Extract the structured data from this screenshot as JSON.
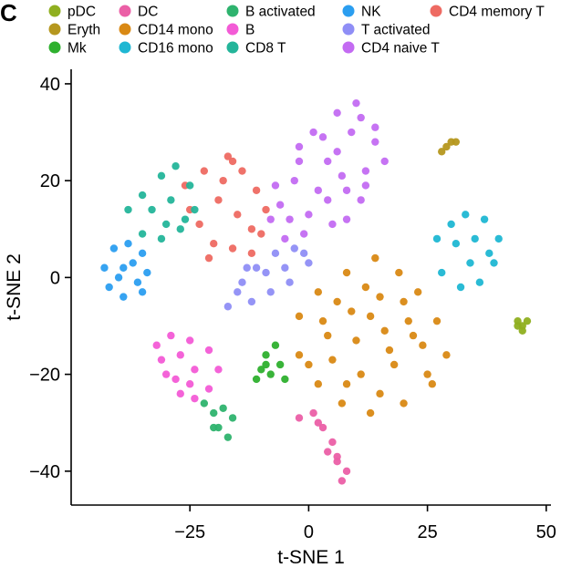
{
  "panel_label": "C",
  "chart_data": {
    "type": "scatter",
    "title": "",
    "xlabel": "t-SNE 1",
    "ylabel": "t-SNE 2",
    "xlim": [
      -50,
      51
    ],
    "ylim": [
      -47,
      43
    ],
    "xticks": [
      -25,
      0,
      25,
      50
    ],
    "yticks": [
      -40,
      -20,
      0,
      20,
      40
    ],
    "xtick_labels": [
      "−25",
      "0",
      "25",
      "50"
    ],
    "ytick_labels": [
      "−40",
      "−20",
      "0",
      "20",
      "40"
    ],
    "grid": false,
    "legend_position": "top",
    "legend": [
      {
        "name": "pDC",
        "color": "#8FAF1F"
      },
      {
        "name": "Eryth",
        "color": "#B5971E"
      },
      {
        "name": "Mk",
        "color": "#2EB02E"
      },
      {
        "name": "DC",
        "color": "#EB5FA6"
      },
      {
        "name": "CD14 mono",
        "color": "#D98914"
      },
      {
        "name": "CD16 mono",
        "color": "#1FB7D3"
      },
      {
        "name": "B activated",
        "color": "#2EB36E"
      },
      {
        "name": "B",
        "color": "#F35BD6"
      },
      {
        "name": "CD8 T",
        "color": "#24B59A"
      },
      {
        "name": "NK",
        "color": "#2B9EF0"
      },
      {
        "name": "T activated",
        "color": "#8F8EF6"
      },
      {
        "name": "CD4 naive T",
        "color": "#C36BF2"
      },
      {
        "name": "CD4 memory T",
        "color": "#EE6A62"
      }
    ],
    "series": [
      {
        "name": "CD4 naive T",
        "color": "#C36BF2",
        "points": [
          [
            -7,
            19
          ],
          [
            -3,
            20
          ],
          [
            2,
            18
          ],
          [
            6,
            26
          ],
          [
            9,
            30
          ],
          [
            11,
            33
          ],
          [
            14,
            28
          ],
          [
            12,
            22
          ],
          [
            8,
            18
          ],
          [
            4,
            16
          ],
          [
            0,
            13
          ],
          [
            -4,
            12
          ],
          [
            -6,
            15
          ],
          [
            -2,
            24
          ],
          [
            3,
            29
          ],
          [
            6,
            34
          ],
          [
            10,
            36
          ],
          [
            14,
            31
          ],
          [
            16,
            24
          ],
          [
            11,
            16
          ],
          [
            5,
            11
          ],
          [
            -1,
            9
          ],
          [
            -5,
            8
          ],
          [
            -8,
            12
          ],
          [
            -2,
            27
          ],
          [
            4,
            24
          ],
          [
            8,
            12
          ],
          [
            12,
            19
          ],
          [
            1,
            30
          ],
          [
            7,
            21
          ]
        ]
      },
      {
        "name": "CD4 memory T",
        "color": "#EE6A62",
        "points": [
          [
            -26,
            19
          ],
          [
            -22,
            22
          ],
          [
            -17,
            25
          ],
          [
            -14,
            22
          ],
          [
            -11,
            18
          ],
          [
            -9,
            14
          ],
          [
            -12,
            10
          ],
          [
            -16,
            6
          ],
          [
            -20,
            7
          ],
          [
            -23,
            11
          ],
          [
            -25,
            14
          ],
          [
            -19,
            16
          ],
          [
            -15,
            13
          ],
          [
            -12,
            5
          ],
          [
            -18,
            20
          ],
          [
            -21,
            4
          ],
          [
            -10,
            9
          ],
          [
            -16,
            24
          ]
        ]
      },
      {
        "name": "CD8 T",
        "color": "#24B59A",
        "points": [
          [
            -38,
            14
          ],
          [
            -35,
            17
          ],
          [
            -31,
            21
          ],
          [
            -28,
            23
          ],
          [
            -25,
            19
          ],
          [
            -24,
            14
          ],
          [
            -27,
            10
          ],
          [
            -31,
            8
          ],
          [
            -35,
            9
          ],
          [
            -33,
            14
          ],
          [
            -29,
            16
          ],
          [
            -26,
            12
          ],
          [
            -30,
            11
          ]
        ]
      },
      {
        "name": "NK",
        "color": "#2B9EF0",
        "points": [
          [
            -43,
            2
          ],
          [
            -41,
            6
          ],
          [
            -38,
            7
          ],
          [
            -35,
            5
          ],
          [
            -34,
            1
          ],
          [
            -35,
            -3
          ],
          [
            -39,
            -4
          ],
          [
            -42,
            -2
          ],
          [
            -39,
            2
          ],
          [
            -37,
            3
          ],
          [
            -36,
            -1
          ],
          [
            -40,
            0
          ]
        ]
      },
      {
        "name": "T activated",
        "color": "#8F8EF6",
        "points": [
          [
            -17,
            -6
          ],
          [
            -14,
            -1
          ],
          [
            -11,
            2
          ],
          [
            -7,
            5
          ],
          [
            -3,
            6
          ],
          [
            0,
            3
          ],
          [
            -4,
            -1
          ],
          [
            -8,
            -3
          ],
          [
            -12,
            -5
          ],
          [
            -15,
            -3
          ],
          [
            -9,
            1
          ],
          [
            -5,
            2
          ],
          [
            -1,
            5
          ],
          [
            -13,
            2
          ]
        ]
      },
      {
        "name": "CD14 mono",
        "color": "#D98914",
        "points": [
          [
            -2,
            -8
          ],
          [
            2,
            -3
          ],
          [
            8,
            1
          ],
          [
            14,
            4
          ],
          [
            19,
            1
          ],
          [
            23,
            -3
          ],
          [
            27,
            -9
          ],
          [
            29,
            -16
          ],
          [
            26,
            -22
          ],
          [
            20,
            -26
          ],
          [
            13,
            -28
          ],
          [
            7,
            -26
          ],
          [
            2,
            -22
          ],
          [
            -2,
            -16
          ],
          [
            4,
            -12
          ],
          [
            9,
            -7
          ],
          [
            15,
            -4
          ],
          [
            21,
            -9
          ],
          [
            24,
            -14
          ],
          [
            18,
            -18
          ],
          [
            11,
            -20
          ],
          [
            5,
            -17
          ],
          [
            10,
            -13
          ],
          [
            16,
            -11
          ],
          [
            6,
            -5
          ],
          [
            12,
            -2
          ],
          [
            20,
            -5
          ],
          [
            25,
            -20
          ],
          [
            15,
            -24
          ],
          [
            8,
            -22
          ],
          [
            0,
            -18
          ],
          [
            3,
            -9
          ],
          [
            22,
            -12
          ],
          [
            17,
            -15
          ],
          [
            13,
            -8
          ]
        ]
      },
      {
        "name": "CD16 mono",
        "color": "#1FB7D3",
        "points": [
          [
            27,
            8
          ],
          [
            30,
            11
          ],
          [
            33,
            13
          ],
          [
            37,
            12
          ],
          [
            40,
            8
          ],
          [
            39,
            3
          ],
          [
            36,
            -1
          ],
          [
            32,
            -2
          ],
          [
            28,
            1
          ],
          [
            31,
            7
          ],
          [
            35,
            8
          ],
          [
            34,
            3
          ],
          [
            38,
            5
          ]
        ]
      },
      {
        "name": "DC",
        "color": "#EB5FA6",
        "points": [
          [
            -2,
            -29
          ],
          [
            1,
            -28
          ],
          [
            3,
            -31
          ],
          [
            5,
            -34
          ],
          [
            6,
            -37
          ],
          [
            8,
            -40
          ],
          [
            7,
            -42
          ],
          [
            4,
            -36
          ],
          [
            2,
            -30
          ],
          [
            6,
            -38
          ]
        ]
      },
      {
        "name": "B",
        "color": "#F35BD6",
        "points": [
          [
            -32,
            -14
          ],
          [
            -29,
            -12
          ],
          [
            -25,
            -13
          ],
          [
            -21,
            -15
          ],
          [
            -19,
            -19
          ],
          [
            -21,
            -23
          ],
          [
            -24,
            -25
          ],
          [
            -27,
            -24
          ],
          [
            -30,
            -20
          ],
          [
            -31,
            -17
          ],
          [
            -27,
            -16
          ],
          [
            -24,
            -19
          ],
          [
            -28,
            -21
          ],
          [
            -25,
            -22
          ]
        ]
      },
      {
        "name": "B activated",
        "color": "#2EB36E",
        "points": [
          [
            -22,
            -26
          ],
          [
            -20,
            -28
          ],
          [
            -19,
            -31
          ],
          [
            -17,
            -33
          ],
          [
            -16,
            -29
          ],
          [
            -18,
            -27
          ],
          [
            -20,
            -31
          ]
        ]
      },
      {
        "name": "Mk",
        "color": "#2EB02E",
        "points": [
          [
            -10,
            -19
          ],
          [
            -9,
            -16
          ],
          [
            -7,
            -14
          ],
          [
            -8,
            -20
          ],
          [
            -6,
            -18
          ],
          [
            -5,
            -21
          ],
          [
            -11,
            -21
          ],
          [
            -9,
            -18
          ]
        ]
      },
      {
        "name": "pDC",
        "color": "#8FAF1F",
        "points": [
          [
            44,
            -9
          ],
          [
            45,
            -10
          ],
          [
            46,
            -9
          ],
          [
            45,
            -11
          ],
          [
            44,
            -10
          ]
        ]
      },
      {
        "name": "Eryth",
        "color": "#B5971E",
        "points": [
          [
            28,
            26
          ],
          [
            29,
            27
          ],
          [
            30,
            28
          ],
          [
            31,
            28
          ]
        ]
      }
    ]
  }
}
